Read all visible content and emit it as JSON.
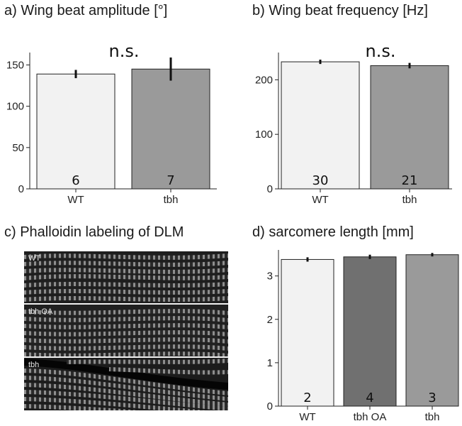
{
  "panels": {
    "a": {
      "title": "a) Wing beat amplitude [°]",
      "chart_data": {
        "type": "bar",
        "categories": [
          "WT",
          "tbh"
        ],
        "values": [
          139,
          145
        ],
        "errors": [
          5,
          14
        ],
        "n": [
          "6",
          "7"
        ],
        "colors": [
          "#f2f2f2",
          "#9a9a9a"
        ],
        "yticks": [
          0,
          50,
          100,
          150
        ],
        "ylim": [
          0,
          165
        ],
        "significance": "n.s."
      }
    },
    "b": {
      "title": "b) Wing beat frequency [Hz]",
      "chart_data": {
        "type": "bar",
        "categories": [
          "WT",
          "tbh"
        ],
        "values": [
          233,
          226
        ],
        "errors": [
          4,
          5
        ],
        "n": [
          "30",
          "21"
        ],
        "colors": [
          "#f2f2f2",
          "#9a9a9a"
        ],
        "yticks": [
          0,
          100,
          200
        ],
        "ylim": [
          0,
          250
        ],
        "significance": "n.s."
      }
    },
    "c": {
      "title": "c) Phalloidin labeling of DLM",
      "images": [
        {
          "label": "WT"
        },
        {
          "label": "tbh OA"
        },
        {
          "label": "tbh"
        }
      ]
    },
    "d": {
      "title": "d) sarcomere length [mm]",
      "chart_data": {
        "type": "bar",
        "categories": [
          "WT",
          "tbh OA",
          "tbh"
        ],
        "values": [
          3.38,
          3.44,
          3.49
        ],
        "errors": [
          0.05,
          0.05,
          0.04
        ],
        "n": [
          "2",
          "4",
          "3"
        ],
        "colors": [
          "#f2f2f2",
          "#707070",
          "#9a9a9a"
        ],
        "yticks": [
          0,
          1,
          2,
          3
        ],
        "ylim": [
          0,
          3.6
        ]
      }
    }
  }
}
